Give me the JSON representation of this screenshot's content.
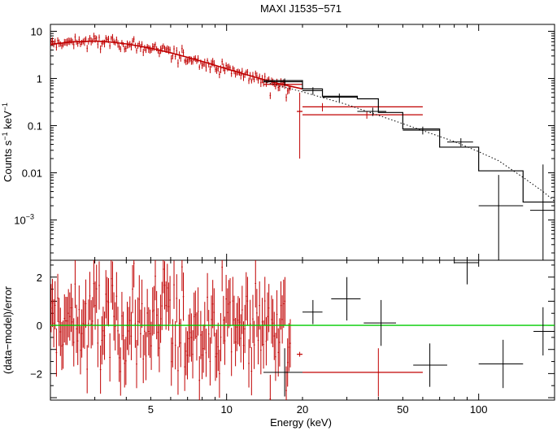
{
  "chart_data": [
    {
      "type": "scatter",
      "title": "MAXI J1535−571",
      "xlabel": "Energy (keV)",
      "ylabel_main": "Counts s",
      "ylabel_sup1": "−1",
      "ylabel_mid": " keV",
      "ylabel_sup2": "−1",
      "xscale": "log",
      "yscale": "log",
      "xlim": [
        2.0,
        200
      ],
      "ylim": [
        0.00014,
        14
      ],
      "ytick_labels": [
        {
          "value": 10,
          "label": "10"
        },
        {
          "value": 1,
          "label": "1"
        },
        {
          "value": 0.1,
          "label": "0.1"
        },
        {
          "value": 0.01,
          "label": "0.01"
        },
        {
          "value": 0.001,
          "label": "10",
          "sup": "−3"
        }
      ],
      "colors": {
        "red": "#c00000",
        "black": "#000000",
        "green": "#00cc00"
      },
      "model_red_curve": {
        "x": [
          2.0,
          2.5,
          3.0,
          3.5,
          4.0,
          5.0,
          6.0,
          7.0,
          8.0,
          10.0,
          12.0,
          14.0,
          16.0,
          18.0,
          20.0
        ],
        "y": [
          5.3,
          6.0,
          6.2,
          5.9,
          5.4,
          4.4,
          3.5,
          2.8,
          2.3,
          1.6,
          1.2,
          0.95,
          0.78,
          0.68,
          0.6
        ]
      },
      "model_black_step": {
        "edges": [
          14,
          20,
          24,
          33,
          40,
          50,
          70,
          100,
          150,
          200
        ],
        "values": [
          0.9,
          0.6,
          0.42,
          0.37,
          0.19,
          0.085,
          0.035,
          0.011,
          0.0024
        ]
      },
      "dotted_model": {
        "x": [
          14,
          20,
          30,
          50,
          80,
          100,
          120,
          150,
          180,
          200
        ],
        "y": [
          0.85,
          0.52,
          0.28,
          0.11,
          0.046,
          0.028,
          0.018,
          0.008,
          0.004,
          0.0025
        ]
      },
      "data_red_binned": [
        {
          "x": 17,
          "xlo": 14,
          "xhi": 20,
          "y": 0.75,
          "ylo": 0.6,
          "yhi": 0.9
        },
        {
          "x": 19.5,
          "xlo": 19,
          "xhi": 20,
          "y": 0.2,
          "ylo": 0.02,
          "yhi": 0.5
        },
        {
          "x": 24,
          "xlo": 20,
          "xhi": 60,
          "y": 0.25,
          "ylo": 0.2,
          "yhi": 0.3
        },
        {
          "x": 36,
          "xlo": 20,
          "xhi": 60,
          "y": 0.17,
          "ylo": 0.14,
          "yhi": 0.2
        }
      ],
      "data_black": [
        {
          "x": 17,
          "xlo": 14,
          "xhi": 20,
          "y": 0.85,
          "ylo": 0.7,
          "yhi": 1.0
        },
        {
          "x": 22,
          "xlo": 20,
          "xhi": 24,
          "y": 0.55,
          "ylo": 0.45,
          "yhi": 0.65
        },
        {
          "x": 28,
          "xlo": 24,
          "xhi": 33,
          "y": 0.4,
          "ylo": 0.32,
          "yhi": 0.48
        },
        {
          "x": 38,
          "xlo": 33,
          "xhi": 43,
          "y": 0.2,
          "ylo": 0.16,
          "yhi": 0.24
        },
        {
          "x": 60,
          "xlo": 50,
          "xhi": 70,
          "y": 0.08,
          "ylo": 0.065,
          "yhi": 0.095
        },
        {
          "x": 85,
          "xlo": 75,
          "xhi": 95,
          "y": 0.045,
          "ylo": 0.036,
          "yhi": 0.054
        },
        {
          "x": 120,
          "xlo": 100,
          "xhi": 150,
          "y": 0.002,
          "ylo": 0.00014,
          "yhi": 0.009
        },
        {
          "x": 180,
          "xlo": 160,
          "xhi": 200,
          "y": 0.0016,
          "ylo": 0.00014,
          "yhi": 0.015
        }
      ],
      "red_points_count_estimate": 180
    },
    {
      "type": "scatter",
      "xscale": "log",
      "ylabel": "(data−model)/error",
      "xlim": [
        2.0,
        200
      ],
      "ylim": [
        -3.1,
        2.7
      ],
      "ytick_labels": [
        {
          "value": 2,
          "label": "2"
        },
        {
          "value": 0,
          "label": "0"
        },
        {
          "value": -2,
          "label": "−2"
        }
      ],
      "xtick_labels": [
        {
          "value": 5,
          "label": "5"
        },
        {
          "value": 10,
          "label": "10"
        },
        {
          "value": 20,
          "label": "20"
        },
        {
          "value": 50,
          "label": "50"
        },
        {
          "value": 100,
          "label": "100"
        }
      ],
      "zero_line": 0,
      "residuals_black": [
        {
          "x": 17,
          "xlo": 14,
          "xhi": 20,
          "y": -1.95,
          "yerr": 1.0
        },
        {
          "x": 22,
          "xlo": 20,
          "xhi": 24,
          "y": 0.55,
          "yerr": 0.5
        },
        {
          "x": 30,
          "xlo": 26,
          "xhi": 34,
          "y": 1.1,
          "yerr": 0.9
        },
        {
          "x": 41,
          "xlo": 35,
          "xhi": 47,
          "y": 0.1,
          "yerr": 0.95
        },
        {
          "x": 64,
          "xlo": 55,
          "xhi": 75,
          "y": -1.65,
          "yerr": 0.9
        },
        {
          "x": 90,
          "xlo": 80,
          "xhi": 100,
          "y": 2.6,
          "yerr": 0.9
        },
        {
          "x": 125,
          "xlo": 100,
          "xhi": 150,
          "y": -1.6,
          "yerr": 1.0
        },
        {
          "x": 180,
          "xlo": 165,
          "xhi": 200,
          "y": -0.25,
          "yerr": 1.0
        }
      ],
      "residuals_red_binned": [
        {
          "x": 19.5,
          "xlo": 19,
          "xhi": 20,
          "y": -1.2,
          "yerr": 0.1
        },
        {
          "x": 40,
          "xlo": 20,
          "xhi": 60,
          "y": -1.95,
          "yerr": 1.0
        }
      ]
    }
  ]
}
